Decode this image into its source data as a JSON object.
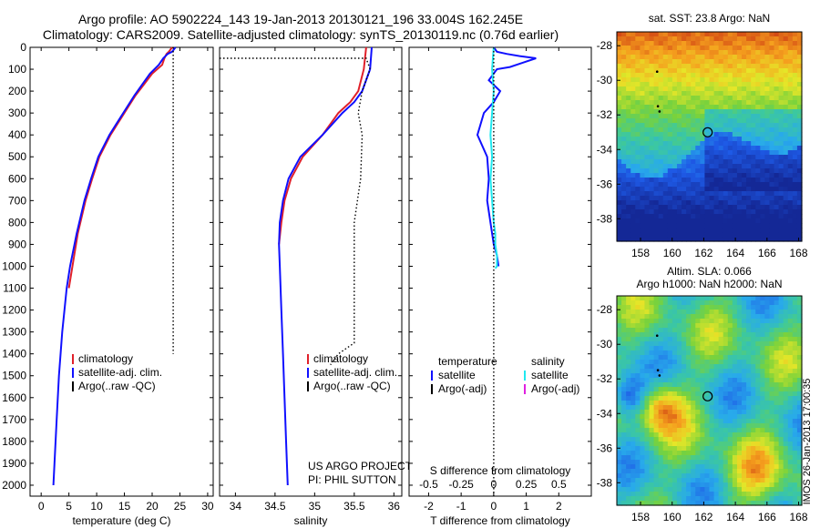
{
  "header": {
    "line1": "Argo profile: AO 5902224_143 19-Jan-2013 20130121_196 33.004S 162.245E",
    "line2": "Climatology: CARS2009. Satellite-adjusted climatology: synTS_20130119.nc (0.76d earlier)"
  },
  "colors": {
    "climatology": "#e0202a",
    "satellite": "#1010ff",
    "argo": "#000000",
    "salinity_satellite": "#20e8f0",
    "salinity_argo": "#e020e0"
  },
  "depth_axis": {
    "ylim": [
      0,
      2050
    ],
    "ticks": [
      0,
      100,
      200,
      300,
      400,
      500,
      600,
      700,
      800,
      900,
      1000,
      1100,
      1200,
      1300,
      1400,
      1500,
      1600,
      1700,
      1800,
      1900,
      2000
    ]
  },
  "chart_data": [
    {
      "type": "line",
      "id": "temperature",
      "xlabel": "temperature (deg C)",
      "xlim": [
        -2,
        31
      ],
      "xticks": [
        0,
        5,
        10,
        15,
        20,
        25,
        30
      ],
      "legend": [
        "climatology",
        "satellite-adj. clim.",
        "Argo(..raw -QC)"
      ],
      "series": [
        {
          "name": "climatology",
          "color_key": "climatology",
          "style": "solid",
          "x": [
            23.6,
            23.0,
            22.6,
            22.2,
            21.8,
            20.0,
            18.5,
            17.0,
            15.0,
            12.5,
            10.5,
            9.2,
            8.0,
            6.6,
            5.0
          ],
          "y": [
            0,
            20,
            30,
            50,
            80,
            120,
            170,
            220,
            300,
            400,
            500,
            600,
            700,
            850,
            1100
          ]
        },
        {
          "name": "satellite-adj. clim.",
          "color_key": "satellite",
          "style": "solid",
          "x": [
            24.2,
            23.6,
            22.8,
            22.0,
            21.2,
            19.6,
            18.2,
            16.8,
            14.8,
            12.3,
            10.3,
            9.0,
            7.8,
            6.4,
            5.2,
            4.6,
            3.8,
            3.2,
            2.8,
            2.4,
            2.2
          ],
          "y": [
            0,
            20,
            30,
            50,
            80,
            120,
            170,
            220,
            300,
            400,
            500,
            600,
            700,
            850,
            1000,
            1100,
            1300,
            1500,
            1700,
            1900,
            2000
          ]
        },
        {
          "name": "Argo(..raw -QC)",
          "color_key": "argo",
          "style": "dotted",
          "x": [
            23.8,
            23.8,
            23.8
          ],
          "y": [
            0,
            30,
            1400
          ]
        }
      ]
    },
    {
      "type": "line",
      "id": "salinity",
      "xlabel": "salinity",
      "xlim": [
        33.8,
        36.1
      ],
      "xticks": [
        34,
        34.5,
        35,
        35.5,
        36
      ],
      "legend": [
        "climatology",
        "satellite-adj. clim.",
        "Argo(..raw -QC)"
      ],
      "annotations": [
        "US ARGO PROJECT",
        "PI: PHIL SUTTON"
      ],
      "series": [
        {
          "name": "climatology",
          "color_key": "climatology",
          "style": "solid",
          "x": [
            35.65,
            35.62,
            35.55,
            35.45,
            35.3,
            35.1,
            34.85,
            34.7,
            34.62,
            34.58,
            34.55
          ],
          "y": [
            0,
            100,
            200,
            250,
            300,
            400,
            500,
            600,
            700,
            800,
            900
          ]
        },
        {
          "name": "satellite-adj. clim.",
          "color_key": "satellite",
          "style": "solid",
          "x": [
            35.72,
            35.7,
            35.6,
            35.5,
            35.35,
            35.1,
            34.82,
            34.67,
            34.6,
            34.56,
            34.55,
            34.56,
            34.58,
            34.6,
            34.62,
            34.64,
            34.66
          ],
          "y": [
            0,
            100,
            200,
            250,
            300,
            400,
            500,
            600,
            700,
            800,
            900,
            1000,
            1200,
            1400,
            1600,
            1800,
            2000
          ]
        },
        {
          "name": "Argo(..raw -QC)",
          "color_key": "argo",
          "style": "dotted",
          "x": [
            33.8,
            35.65,
            35.7,
            35.65,
            35.6,
            35.55,
            35.6,
            35.58,
            35.5,
            35.5,
            35.5,
            35.3,
            35.2
          ],
          "y": [
            50,
            50,
            100,
            150,
            200,
            300,
            400,
            600,
            800,
            1000,
            1350,
            1400,
            1450
          ]
        }
      ]
    },
    {
      "type": "line",
      "id": "difference",
      "xlabel": "T difference from climatology",
      "xlabel2": "S difference from climatology",
      "xlim": [
        -2.6,
        3.0
      ],
      "xticks": [
        -2,
        -1,
        0,
        1,
        2
      ],
      "xticks2": [
        -0.5,
        -0.25,
        0,
        0.25,
        0.5
      ],
      "legend": [
        "temperature",
        "salinity",
        "satellite",
        "satellite",
        "Argo(-adj)",
        "Argo(-adj)"
      ],
      "series": [
        {
          "name": "temperature satellite",
          "color_key": "satellite",
          "style": "solid",
          "x": [
            0.0,
            0.1,
            0.4,
            0.8,
            1.3,
            0.9,
            0.5,
            0.1,
            -0.15,
            0.2,
            0.0,
            -0.3,
            -0.5,
            -0.2,
            -0.15,
            -0.2,
            -0.1,
            -0.05,
            0.0,
            0.1,
            0.15
          ],
          "y": [
            0,
            20,
            30,
            40,
            50,
            70,
            90,
            100,
            150,
            200,
            250,
            300,
            400,
            500,
            600,
            700,
            800,
            850,
            900,
            950,
            1000
          ]
        },
        {
          "name": "salinity satellite",
          "color_key": "salinity_satellite",
          "style": "solid",
          "x": [
            0.0,
            -0.05,
            0.0,
            -0.05,
            -0.1,
            -0.05,
            -0.1,
            -0.05,
            0.0,
            0.05,
            0.05,
            0.1,
            0.1,
            0.05
          ],
          "y": [
            0,
            100,
            200,
            300,
            400,
            500,
            600,
            700,
            800,
            850,
            900,
            950,
            1000,
            1010
          ]
        },
        {
          "name": "zero reference",
          "color_key": "argo",
          "style": "dotted",
          "x": [
            0,
            0
          ],
          "y": [
            0,
            2050
          ]
        }
      ]
    },
    {
      "type": "heatmap",
      "id": "sst_map",
      "title": "sat. SST: 23.8  Argo: NaN",
      "xlim": [
        156.5,
        168.2
      ],
      "ylim": [
        -39.3,
        -27.2
      ],
      "xticks": [
        158,
        160,
        162,
        164,
        166,
        168
      ],
      "yticks": [
        -28,
        -30,
        -32,
        -34,
        -36,
        -38
      ],
      "argo_position": [
        162.245,
        -33.004
      ]
    },
    {
      "type": "heatmap",
      "id": "sla_map",
      "title": "Altim. SLA: 0.066",
      "subtitle": "Argo h1000: NaN h2000: NaN",
      "xlim": [
        156.5,
        168.2
      ],
      "ylim": [
        -39.3,
        -27.2
      ],
      "xticks": [
        158,
        160,
        162,
        164,
        166,
        168
      ],
      "yticks": [
        -28,
        -30,
        -32,
        -34,
        -36,
        -38
      ],
      "argo_position": [
        162.245,
        -33.004
      ]
    }
  ],
  "credit": "IMOS 26-Jan-2013 17:00:35"
}
